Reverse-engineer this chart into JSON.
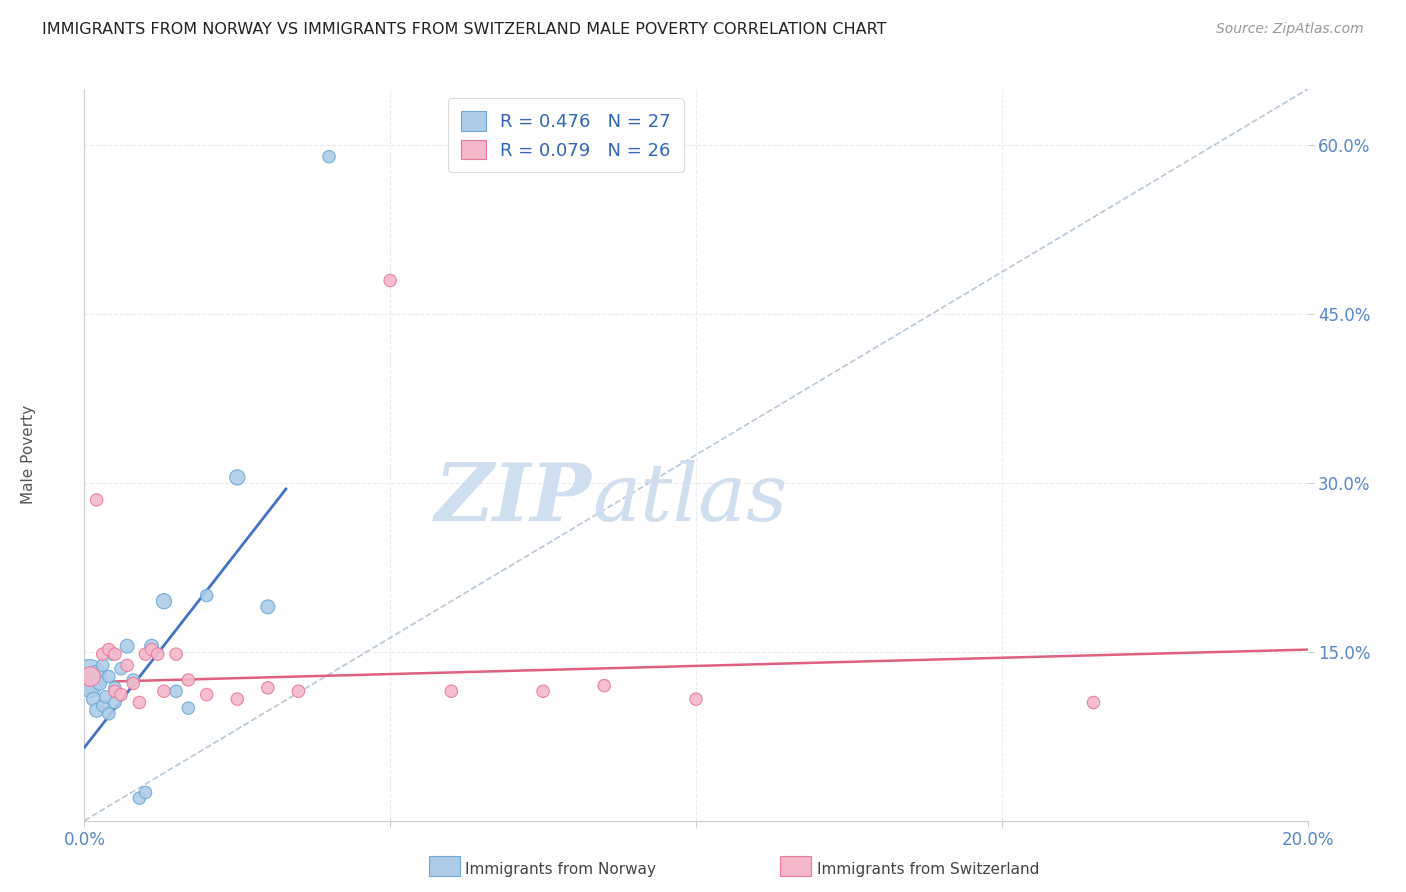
{
  "title": "IMMIGRANTS FROM NORWAY VS IMMIGRANTS FROM SWITZERLAND MALE POVERTY CORRELATION CHART",
  "source": "Source: ZipAtlas.com",
  "ylabel": "Male Poverty",
  "x_min": 0.0,
  "x_max": 0.2,
  "y_min": 0.0,
  "y_max": 0.65,
  "norway_color": "#aecce8",
  "norway_edge_color": "#6aaad4",
  "switzerland_color": "#f5b8cb",
  "switzerland_edge_color": "#e8789a",
  "norway_line_color": "#4472c4",
  "switzerland_line_color": "#e06080",
  "ref_line_color": "#b8c8d8",
  "legend_norway_label": "R = 0.476   N = 27",
  "legend_switzerland_label": "R = 0.079   N = 26",
  "norway_x": [
    0.0008,
    0.001,
    0.0015,
    0.002,
    0.002,
    0.0025,
    0.003,
    0.003,
    0.0035,
    0.004,
    0.004,
    0.0045,
    0.005,
    0.005,
    0.006,
    0.007,
    0.008,
    0.009,
    0.01,
    0.011,
    0.013,
    0.015,
    0.017,
    0.02,
    0.025,
    0.03,
    0.04
  ],
  "norway_y": [
    0.128,
    0.118,
    0.108,
    0.132,
    0.098,
    0.122,
    0.138,
    0.102,
    0.11,
    0.128,
    0.095,
    0.148,
    0.105,
    0.118,
    0.135,
    0.155,
    0.125,
    0.02,
    0.025,
    0.155,
    0.195,
    0.115,
    0.1,
    0.2,
    0.305,
    0.19,
    0.59
  ],
  "norway_sizes": [
    600,
    200,
    100,
    100,
    100,
    100,
    80,
    80,
    80,
    80,
    80,
    80,
    80,
    80,
    80,
    100,
    80,
    80,
    80,
    100,
    120,
    80,
    80,
    80,
    120,
    100,
    80
  ],
  "switzerland_x": [
    0.001,
    0.002,
    0.003,
    0.004,
    0.005,
    0.005,
    0.006,
    0.007,
    0.008,
    0.009,
    0.01,
    0.011,
    0.012,
    0.013,
    0.015,
    0.017,
    0.02,
    0.025,
    0.03,
    0.035,
    0.05,
    0.06,
    0.075,
    0.085,
    0.1,
    0.165
  ],
  "switzerland_y": [
    0.128,
    0.285,
    0.148,
    0.152,
    0.148,
    0.115,
    0.112,
    0.138,
    0.122,
    0.105,
    0.148,
    0.152,
    0.148,
    0.115,
    0.148,
    0.125,
    0.112,
    0.108,
    0.118,
    0.115,
    0.48,
    0.115,
    0.115,
    0.12,
    0.108,
    0.105
  ],
  "switzerland_sizes": [
    200,
    80,
    80,
    80,
    80,
    80,
    80,
    80,
    80,
    80,
    80,
    80,
    80,
    80,
    80,
    80,
    80,
    80,
    80,
    80,
    80,
    80,
    80,
    80,
    80,
    80
  ],
  "norway_trend_x": [
    0.0,
    0.033
  ],
  "norway_trend_y": [
    0.065,
    0.295
  ],
  "switzerland_trend_x": [
    0.0,
    0.2
  ],
  "switzerland_trend_y": [
    0.123,
    0.152
  ],
  "ref_line_x": [
    0.0,
    0.2
  ],
  "ref_line_y": [
    0.0,
    0.65
  ],
  "watermark_zip": "ZIP",
  "watermark_atlas": "atlas",
  "watermark_color": "#d0dff0",
  "background_color": "#ffffff",
  "grid_color": "#e8ecf0"
}
